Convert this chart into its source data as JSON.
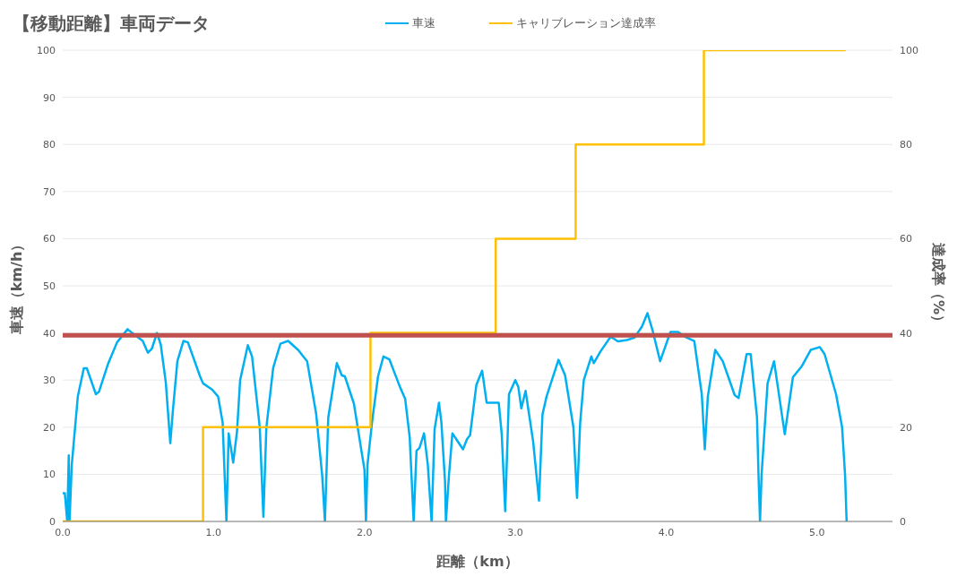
{
  "chart_data": {
    "type": "line",
    "title": "【移動距離】車両データ",
    "xlabel": "距離（km）",
    "ylabel": "車速（km/h）",
    "y2label": "達成率（%）",
    "xlim": [
      0,
      5.5
    ],
    "xticks": [
      {
        "value": 0,
        "label": "0.0"
      },
      {
        "value": 1,
        "label": "1.0"
      },
      {
        "value": 2,
        "label": "2.0"
      },
      {
        "value": 3,
        "label": "3.0"
      },
      {
        "value": 4,
        "label": "4.0"
      },
      {
        "value": 5,
        "label": "5.0"
      }
    ],
    "ylim": [
      0,
      100
    ],
    "yticks": [
      0,
      10,
      20,
      30,
      40,
      50,
      60,
      70,
      80,
      90,
      100
    ],
    "y2lim": [
      0,
      100
    ],
    "y2ticks": [
      0,
      20,
      40,
      60,
      80,
      100
    ],
    "grid": "y",
    "legend": "top",
    "marker": "none",
    "line_style": "solid",
    "ref_lines": [
      {
        "axis": "y",
        "value": 39.5,
        "color": "#c0504d"
      }
    ],
    "series": [
      {
        "name": "車速",
        "color": "#00b0f0",
        "x": [
          0,
          0.014,
          0.03,
          0.04,
          0.045,
          0.06,
          0.1,
          0.14,
          0.16,
          0.22,
          0.24,
          0.3,
          0.36,
          0.43,
          0.46,
          0.53,
          0.565,
          0.59,
          0.625,
          0.65,
          0.683,
          0.713,
          0.73,
          0.76,
          0.8,
          0.83,
          0.91,
          0.93,
          0.99,
          1.03,
          1.06,
          1.085,
          1.1,
          1.13,
          1.155,
          1.176,
          1.227,
          1.255,
          1.306,
          1.33,
          1.35,
          1.395,
          1.443,
          1.494,
          1.56,
          1.62,
          1.68,
          1.72,
          1.738,
          1.76,
          1.817,
          1.85,
          1.87,
          1.93,
          1.97,
          2.0,
          2.01,
          2.02,
          2.05,
          2.09,
          2.126,
          2.165,
          2.237,
          2.27,
          2.3,
          2.326,
          2.345,
          2.365,
          2.395,
          2.42,
          2.445,
          2.465,
          2.494,
          2.51,
          2.534,
          2.54,
          2.56,
          2.583,
          2.653,
          2.68,
          2.7,
          2.742,
          2.78,
          2.81,
          2.89,
          2.91,
          2.933,
          2.958,
          3.0,
          3.02,
          3.04,
          3.068,
          3.118,
          3.157,
          3.18,
          3.207,
          3.286,
          3.33,
          3.385,
          3.409,
          3.43,
          3.454,
          3.504,
          3.52,
          3.563,
          3.632,
          3.68,
          3.74,
          3.79,
          3.84,
          3.876,
          3.91,
          3.96,
          4.028,
          4.078,
          4.137,
          4.186,
          4.236,
          4.256,
          4.276,
          4.325,
          4.375,
          4.454,
          4.48,
          4.533,
          4.56,
          4.602,
          4.612,
          4.622,
          4.632,
          4.672,
          4.715,
          4.786,
          4.84,
          4.9,
          4.958,
          5.018,
          5.05,
          5.126,
          5.166,
          5.186,
          5.196
        ],
        "values": [
          6,
          6,
          0,
          14,
          0,
          12,
          26.5,
          32.5,
          32.5,
          27,
          27.5,
          33.4,
          38,
          40.8,
          40,
          38.3,
          35.8,
          36.6,
          40,
          37.5,
          29.6,
          16.6,
          23.4,
          34,
          38.3,
          38,
          30.8,
          29.3,
          28,
          26.5,
          21,
          0,
          18.7,
          12.5,
          19,
          30,
          37.4,
          35,
          20,
          1,
          20,
          32.6,
          37.7,
          38.3,
          36.4,
          34,
          22.8,
          9.7,
          0,
          22,
          33.6,
          31,
          30.8,
          25,
          17,
          11,
          0,
          12,
          21,
          30.8,
          35,
          34.4,
          28.4,
          26,
          17.8,
          0,
          15,
          15.6,
          18.7,
          12,
          0,
          19.6,
          25.2,
          21,
          8.5,
          0,
          9.7,
          18.7,
          15.3,
          17.5,
          18.3,
          29,
          32,
          25.2,
          25.2,
          18.5,
          2.2,
          27,
          30,
          28.5,
          24,
          27.7,
          17,
          4.4,
          22.7,
          26.5,
          34.3,
          31,
          20,
          5,
          21,
          30,
          35,
          33.6,
          36,
          39.2,
          38.2,
          38.5,
          39,
          41.4,
          44.2,
          40.5,
          34,
          40.2,
          40.2,
          39,
          38.3,
          27,
          15.3,
          26.5,
          36.4,
          34,
          26.8,
          26.2,
          35.5,
          35.5,
          22.1,
          9.7,
          0,
          9.7,
          29.3,
          34,
          18.5,
          30.6,
          33,
          36.4,
          37,
          35.5,
          27,
          20,
          9.7,
          0
        ]
      },
      {
        "name": "キャリブレーション達成率",
        "type": "step",
        "axis": "y2",
        "color": "#ffc000",
        "x": [
          0,
          0.93,
          2.04,
          2.87,
          3.4,
          4.25,
          5.19
        ],
        "values": [
          0,
          20,
          40,
          60,
          80,
          100,
          100
        ]
      }
    ]
  }
}
